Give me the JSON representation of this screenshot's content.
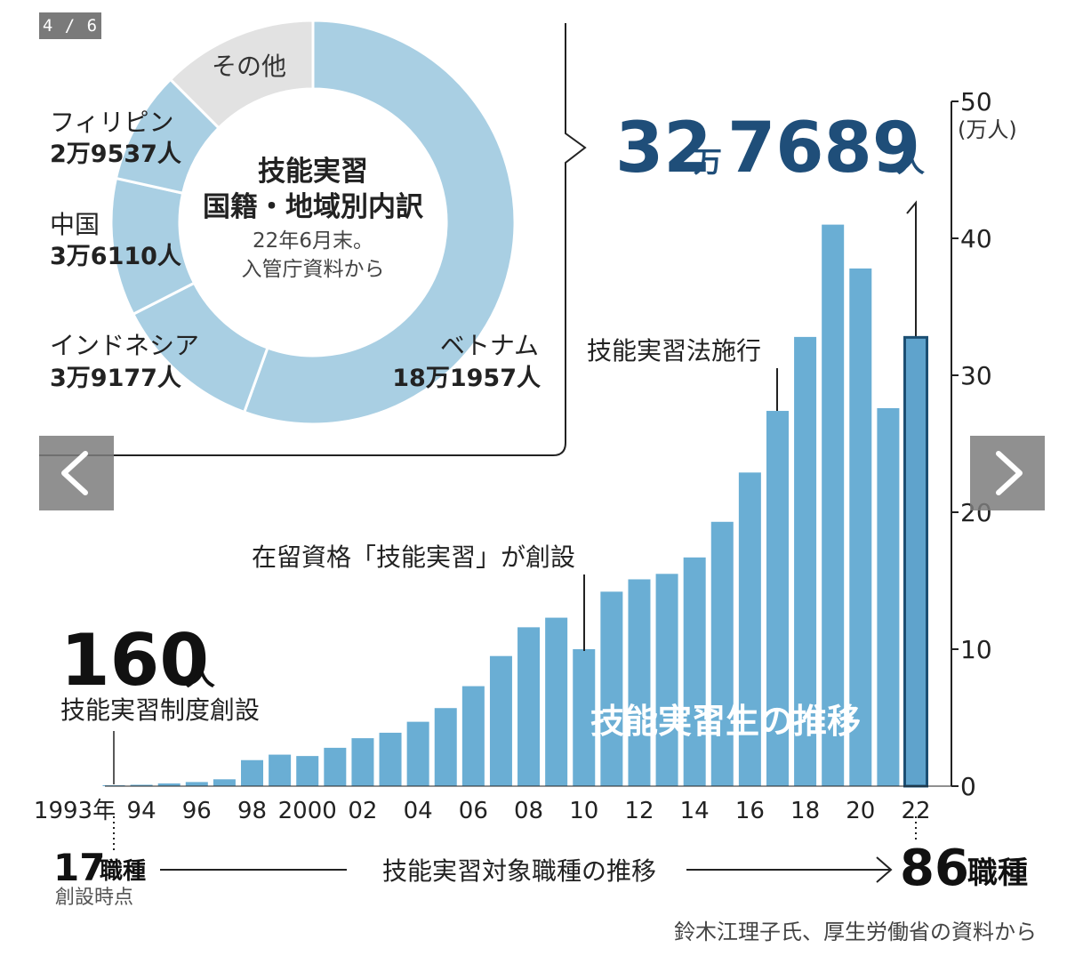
{
  "viewer": {
    "counter": "4 / 6",
    "prev_icon": "chevron-left-icon",
    "next_icon": "chevron-right-icon"
  },
  "colors": {
    "bar": "#6aaed4",
    "bar_highlight": "#5fa3cc",
    "bar_stroke": "#1c4f73",
    "donut_main": "#a9cfe3",
    "donut_other": "#e2e2e2",
    "accent_text": "#1f4e79",
    "overlay_text": "#ffffff"
  },
  "donut": {
    "title_line1": "技能実習",
    "title_line2": "国籍・地域別内訳",
    "note_line1": "22年6月末。",
    "note_line2": "入管庁資料から",
    "segments": [
      {
        "name": "ベトナム",
        "value_text": "18万1957人",
        "value": 181957
      },
      {
        "name": "インドネシア",
        "value_text": "3万9177人",
        "value": 39177
      },
      {
        "name": "中国",
        "value_text": "3万6110人",
        "value": 36110
      },
      {
        "name": "フィリピン",
        "value_text": "2万9537人",
        "value": 29537
      },
      {
        "name": "その他",
        "value_text": "",
        "value": 40908
      }
    ]
  },
  "headline": {
    "number_big": "32",
    "unit_man": "万",
    "number_big2": "7689",
    "unit_nin": "人"
  },
  "left_callout": {
    "number": "160",
    "unit": "人",
    "caption": "技能実習制度創設"
  },
  "annotations": {
    "shikaku": "在留資格「技能実習」が創設",
    "hou": "技能実習法施行"
  },
  "bottom": {
    "start_number": "17",
    "start_unit": "職種",
    "start_caption": "創設時点",
    "arrow_label": "技能実習対象職種の推移",
    "end_number": "86",
    "end_unit": "職種",
    "source": "鈴木江理子氏、厚生労働省の資料から"
  },
  "chart_data": {
    "type": "bar",
    "title": "技能実習生の推移",
    "ylabel": "(万人)",
    "ylim": [
      0,
      50
    ],
    "yticks": [
      0,
      10,
      20,
      30,
      40,
      50
    ],
    "x": [
      1993,
      1994,
      1995,
      1996,
      1997,
      1998,
      1999,
      2000,
      2001,
      2002,
      2003,
      2004,
      2005,
      2006,
      2007,
      2008,
      2009,
      2010,
      2011,
      2012,
      2013,
      2014,
      2015,
      2016,
      2017,
      2018,
      2019,
      2020,
      2021,
      2022
    ],
    "tick_labels": {
      "1993": "1993年",
      "1994": "94",
      "1996": "96",
      "1998": "98",
      "2000": "2000",
      "2002": "02",
      "2004": "04",
      "2006": "06",
      "2008": "08",
      "2010": "10",
      "2012": "12",
      "2014": "14",
      "2016": "16",
      "2018": "18",
      "2020": "20",
      "2022": "22"
    },
    "values": [
      0.016,
      0.1,
      0.2,
      0.3,
      0.5,
      1.9,
      2.3,
      2.2,
      2.8,
      3.5,
      3.9,
      4.7,
      5.7,
      7.3,
      9.5,
      11.6,
      12.3,
      10.0,
      14.2,
      15.1,
      15.5,
      16.7,
      19.3,
      22.9,
      27.4,
      32.8,
      41.0,
      37.8,
      27.6,
      32.7689
    ],
    "highlight_index": 29,
    "legend": "none",
    "grid": false
  }
}
